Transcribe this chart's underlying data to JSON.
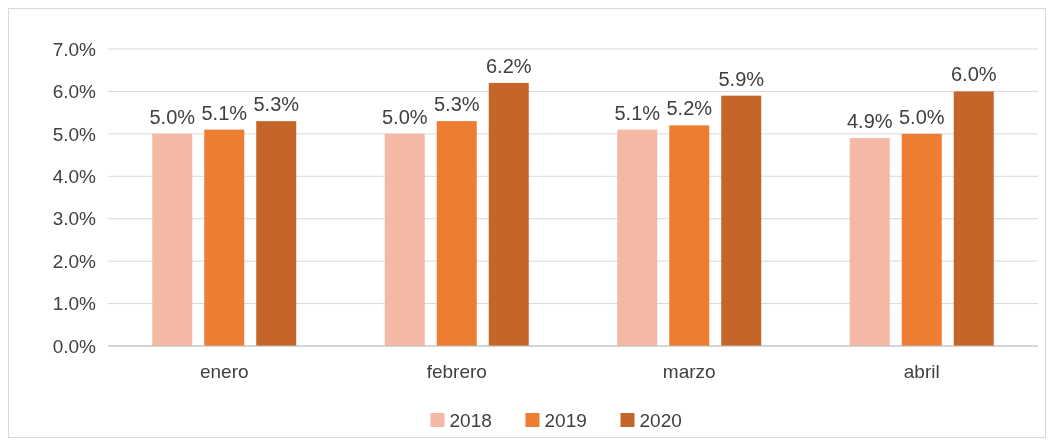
{
  "chart_data": {
    "type": "bar",
    "categories": [
      "enero",
      "febrero",
      "marzo",
      "abril"
    ],
    "series": [
      {
        "name": "2018",
        "color": "#f4b8a4",
        "values": [
          5.0,
          5.0,
          5.1,
          4.9
        ],
        "value_labels": [
          "5.0%",
          "5.0%",
          "5.1%",
          "4.9%"
        ]
      },
      {
        "name": "2019",
        "color": "#ed7d31",
        "values": [
          5.1,
          5.3,
          5.2,
          5.0
        ],
        "value_labels": [
          "5.1%",
          "5.3%",
          "5.2%",
          "5.0%"
        ]
      },
      {
        "name": "2020",
        "color": "#c5652a",
        "values": [
          5.3,
          6.2,
          5.9,
          6.0
        ],
        "value_labels": [
          "5.3%",
          "6.2%",
          "5.9%",
          "6.0%"
        ]
      }
    ],
    "ylim": [
      0,
      7
    ],
    "yticks": [
      {
        "value": 0,
        "label": "0.0%"
      },
      {
        "value": 1,
        "label": "1.0%"
      },
      {
        "value": 2,
        "label": "2.0%"
      },
      {
        "value": 3,
        "label": "3.0%"
      },
      {
        "value": 4,
        "label": "4.0%"
      },
      {
        "value": 5,
        "label": "5.0%"
      },
      {
        "value": 6,
        "label": "6.0%"
      },
      {
        "value": 7,
        "label": "7.0%"
      }
    ],
    "grid": "y",
    "legend": "bottom"
  }
}
